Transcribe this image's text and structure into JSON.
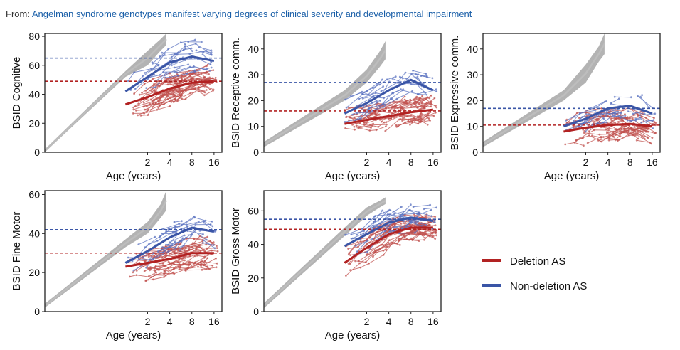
{
  "source": {
    "prefix": "From: ",
    "link_text": "Angelman syndrome genotypes manifest varying degrees of clinical severity and developmental impairment"
  },
  "colors": {
    "deletion": "#b22222",
    "deletion_light": "#c0504d",
    "nondeletion": "#3a55a6",
    "nondeletion_light": "#5a72c0",
    "reference": "#888888"
  },
  "chart_data": [
    {
      "type": "line",
      "ylabel": "BSID Cognitive",
      "xlabel": "Age (years)",
      "x_scale": "log2",
      "x_ticks": [
        2,
        4,
        8,
        16
      ],
      "y_ticks": [
        0,
        20,
        40,
        60,
        80
      ],
      "ylim": [
        0,
        82
      ],
      "series": [
        {
          "name": "Deletion AS",
          "x": [
            1,
            2,
            4,
            8,
            16
          ],
          "values": [
            33,
            38,
            44,
            48,
            49
          ]
        },
        {
          "name": "Non-deletion AS",
          "x": [
            1,
            2,
            4,
            8,
            16
          ],
          "values": [
            42,
            52,
            62,
            66,
            63
          ]
        }
      ],
      "hlines": {
        "deletion": 49,
        "nondeletion": 65
      },
      "reference_band": {
        "x": [
          0.08,
          1,
          2,
          3,
          3.6
        ],
        "lower": [
          0,
          52,
          60,
          70,
          74
        ],
        "upper": [
          2,
          56,
          70,
          78,
          82
        ]
      }
    },
    {
      "type": "line",
      "ylabel": "BSID Receptive comm.",
      "xlabel": "Age (years)",
      "x_scale": "log2",
      "x_ticks": [
        2,
        4,
        8,
        16
      ],
      "y_ticks": [
        0,
        10,
        20,
        30,
        40
      ],
      "ylim": [
        0,
        46
      ],
      "series": [
        {
          "name": "Deletion AS",
          "x": [
            1,
            2,
            4,
            8,
            16
          ],
          "values": [
            11,
            12.5,
            14,
            15.5,
            16.5
          ]
        },
        {
          "name": "Non-deletion AS",
          "x": [
            1,
            2,
            4,
            8,
            16
          ],
          "values": [
            15,
            19,
            24,
            28,
            24
          ]
        }
      ],
      "hlines": {
        "deletion": 16,
        "nondeletion": 27
      },
      "reference_band": {
        "x": [
          0.08,
          1,
          2,
          3,
          3.6
        ],
        "lower": [
          2,
          20,
          27,
          33,
          36
        ],
        "upper": [
          4,
          24,
          32,
          39,
          43
        ]
      }
    },
    {
      "type": "line",
      "ylabel": "BSID Expressive comm.",
      "xlabel": "Age (years)",
      "x_scale": "log2",
      "x_ticks": [
        2,
        4,
        8,
        16
      ],
      "y_ticks": [
        0,
        10,
        20,
        30,
        40
      ],
      "ylim": [
        0,
        46
      ],
      "series": [
        {
          "name": "Deletion AS",
          "x": [
            1,
            2,
            4,
            8,
            16
          ],
          "values": [
            8,
            9.5,
            10.5,
            11,
            10
          ]
        },
        {
          "name": "Non-deletion AS",
          "x": [
            1,
            2,
            4,
            8,
            16
          ],
          "values": [
            10,
            13,
            17,
            18,
            15
          ]
        }
      ],
      "hlines": {
        "deletion": 10.5,
        "nondeletion": 17
      },
      "reference_band": {
        "x": [
          0.08,
          1,
          2,
          3,
          3.6
        ],
        "lower": [
          2,
          20,
          27,
          35,
          38
        ],
        "upper": [
          4,
          24,
          34,
          41,
          46
        ]
      }
    },
    {
      "type": "line",
      "ylabel": "BSID Fine Motor",
      "xlabel": "Age (years)",
      "x_scale": "log2",
      "x_ticks": [
        2,
        4,
        8,
        16
      ],
      "y_ticks": [
        0,
        20,
        40,
        60
      ],
      "ylim": [
        0,
        62
      ],
      "series": [
        {
          "name": "Deletion AS",
          "x": [
            1,
            2,
            4,
            8,
            16
          ],
          "values": [
            23,
            25,
            27,
            30,
            30
          ]
        },
        {
          "name": "Non-deletion AS",
          "x": [
            1,
            2,
            4,
            8,
            16
          ],
          "values": [
            25,
            31,
            38,
            43,
            41
          ]
        }
      ],
      "hlines": {
        "deletion": 30,
        "nondeletion": 42
      },
      "reference_band": {
        "x": [
          0.08,
          1,
          2,
          3,
          3.6
        ],
        "lower": [
          2,
          33,
          40,
          48,
          52
        ],
        "upper": [
          4,
          37,
          46,
          55,
          62
        ]
      }
    },
    {
      "type": "line",
      "ylabel": "BSID Gross Motor",
      "xlabel": "Age (years)",
      "x_scale": "log2",
      "x_ticks": [
        2,
        4,
        8,
        16
      ],
      "y_ticks": [
        0,
        20,
        40,
        60
      ],
      "ylim": [
        0,
        72
      ],
      "series": [
        {
          "name": "Deletion AS",
          "x": [
            1,
            2,
            4,
            8,
            16
          ],
          "values": [
            29,
            38,
            46,
            50,
            50
          ]
        },
        {
          "name": "Non-deletion AS",
          "x": [
            1,
            2,
            4,
            8,
            16
          ],
          "values": [
            39,
            46,
            53,
            56,
            54
          ]
        }
      ],
      "hlines": {
        "deletion": 49,
        "nondeletion": 55
      },
      "reference_band": {
        "x": [
          0.08,
          1,
          2,
          3,
          3.6
        ],
        "lower": [
          2,
          45,
          57,
          62,
          64
        ],
        "upper": [
          5,
          50,
          62,
          66,
          68
        ]
      }
    }
  ],
  "legend": [
    {
      "label": "Deletion AS",
      "color_key": "deletion"
    },
    {
      "label": "Non-deletion AS",
      "color_key": "nondeletion"
    }
  ]
}
